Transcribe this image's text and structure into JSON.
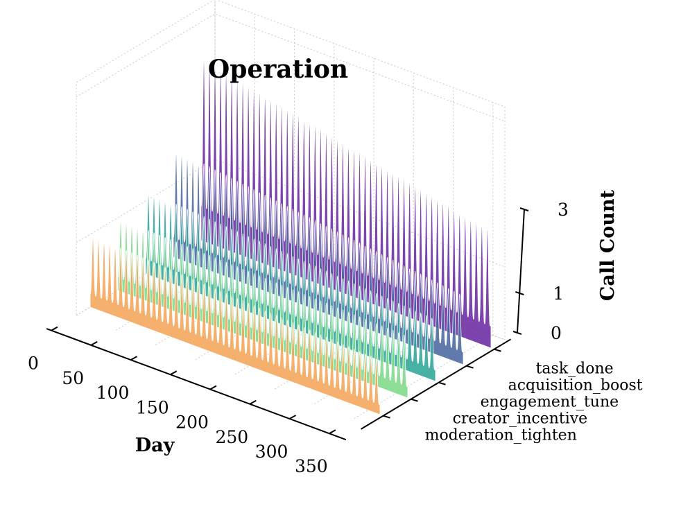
{
  "chart_data": {
    "type": "area",
    "projection": "3d",
    "title": "Operation",
    "xlabel": "Day",
    "zlabel": "Call Count",
    "xlim": [
      0,
      365
    ],
    "zlim": [
      0,
      3
    ],
    "x_ticks": [
      "0",
      "50",
      "100",
      "150",
      "200",
      "250",
      "300",
      "350"
    ],
    "z_ticks": [
      "0",
      "1",
      "3"
    ],
    "categories": [
      "moderation_tighten",
      "creator_incentive",
      "engagement_tune",
      "acquisition_boost",
      "task_done"
    ],
    "series": [
      {
        "name": "moderation_tighten",
        "color": "#f5a55a",
        "peak_start": 1.0,
        "peak_end": 0.75,
        "cycle_days": 7
      },
      {
        "name": "creator_incentive",
        "color": "#80d98a",
        "peak_start": 1.0,
        "peak_end": 0.85,
        "cycle_days": 7
      },
      {
        "name": "engagement_tune",
        "color": "#2fa69a",
        "peak_start": 1.15,
        "peak_end": 0.85,
        "cycle_days": 7
      },
      {
        "name": "acquisition_boost",
        "color": "#4a68a0",
        "peak_start": 1.5,
        "peak_end": 0.95,
        "cycle_days": 7
      },
      {
        "name": "task_done",
        "color": "#6a2aa0",
        "peak_start": 2.6,
        "peak_end": 1.65,
        "cycle_days": 7
      }
    ]
  }
}
